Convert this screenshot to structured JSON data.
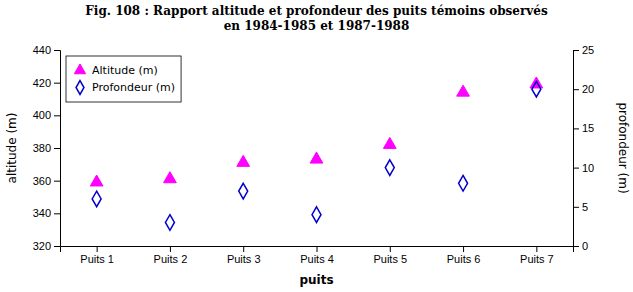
{
  "chart_data": {
    "type": "scatter",
    "title": "Fig. 108 : Rapport altitude et profondeur des puits témoins observés\nen 1984-1985 et 1987-1988",
    "xlabel": "puits",
    "ylabel": "altitude (m)",
    "y2label": "profondeur (m)",
    "categories": [
      "Puits 1",
      "Puits 2",
      "Puits 3",
      "Puits 4",
      "Puits 5",
      "Puits 6",
      "Puits 7"
    ],
    "series": [
      {
        "name": "Altitude (m)",
        "color": "#FF00FF",
        "marker": "triangle",
        "values": [
          359,
          361,
          371,
          373,
          382,
          414,
          419
        ]
      },
      {
        "name": "Profondeur (m)",
        "color": "#0000CC",
        "marker": "diamond-open",
        "axis": "y2",
        "values": [
          6,
          3,
          7,
          4,
          10,
          8,
          20
        ]
      }
    ],
    "ylim": [
      320,
      440
    ],
    "yticks": [
      320,
      340,
      360,
      380,
      400,
      420,
      440
    ],
    "y2lim": [
      0,
      25
    ],
    "y2ticks": [
      0,
      5,
      10,
      15,
      20,
      25
    ],
    "grid": false,
    "legend": "upper left"
  }
}
